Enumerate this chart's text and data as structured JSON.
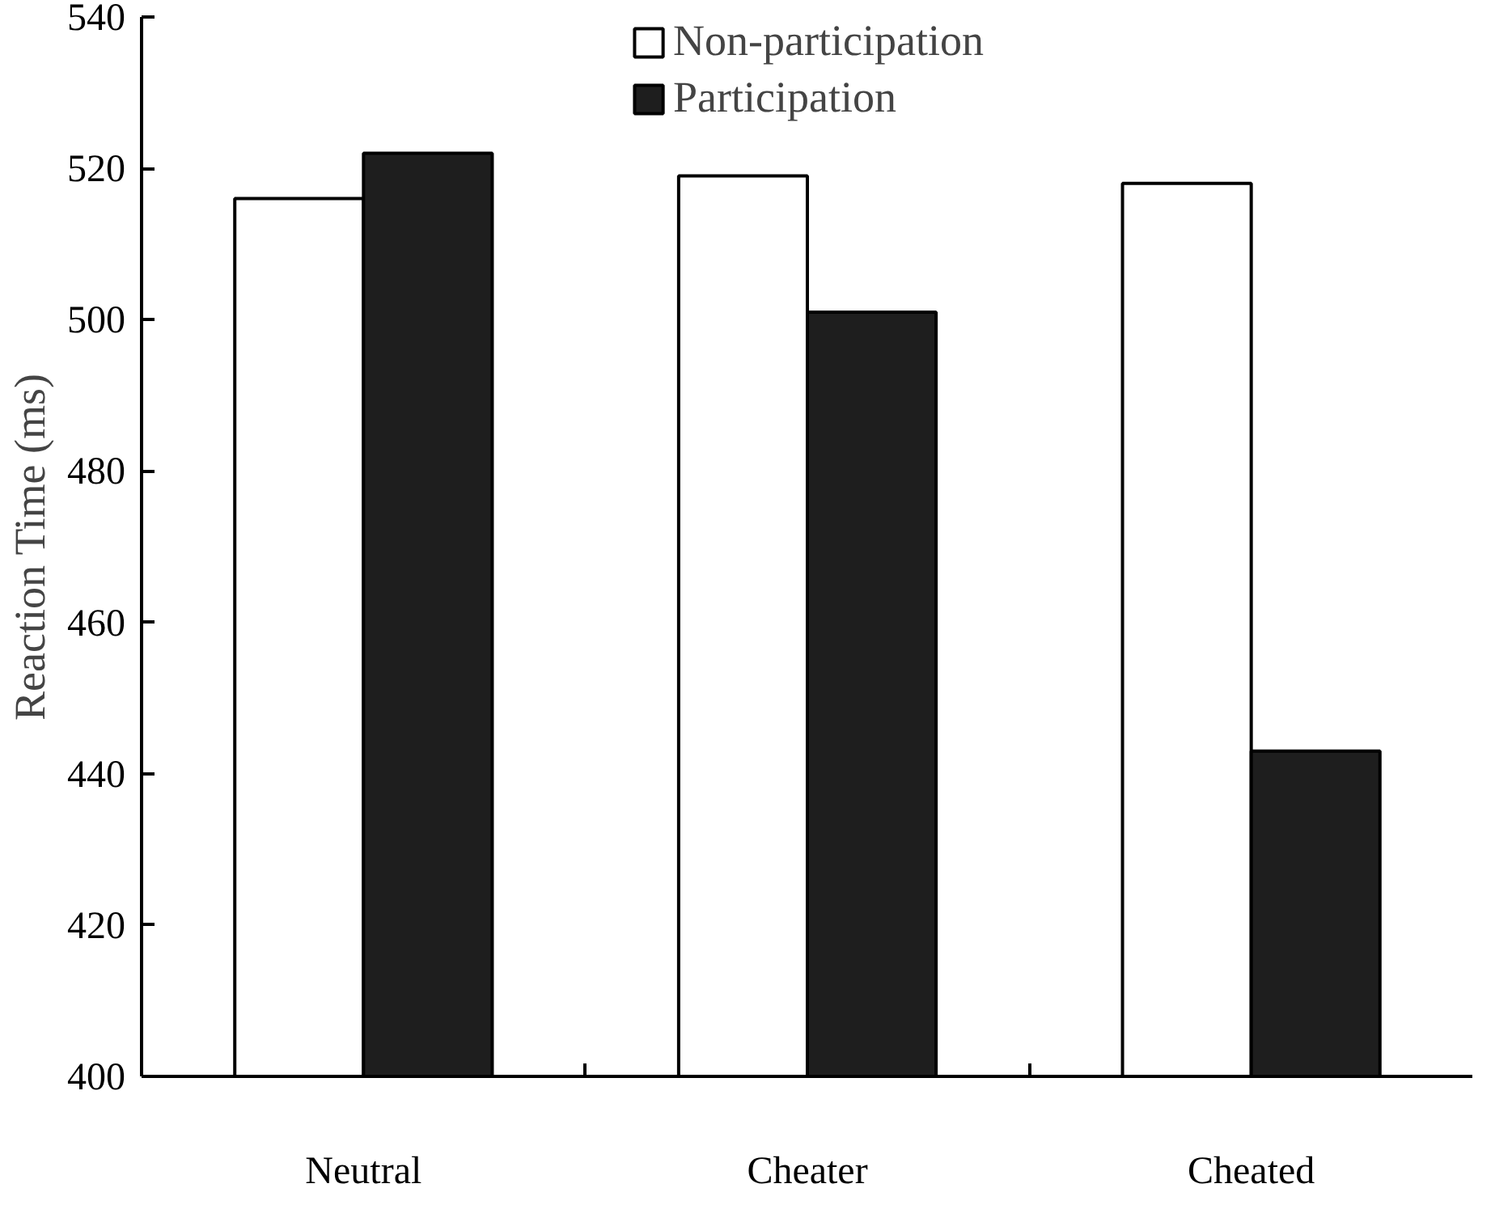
{
  "chart_data": {
    "type": "bar",
    "ylabel": "Reaction Time (ms)",
    "categories": [
      "Neutral",
      "Cheater",
      "Cheated"
    ],
    "series": [
      {
        "name": "Non-participation",
        "color": "#ffffff",
        "values": [
          516,
          519,
          518
        ]
      },
      {
        "name": "Participation",
        "color": "#1e1e1e",
        "values": [
          522,
          501,
          443
        ]
      }
    ],
    "ylim": [
      400,
      540
    ],
    "yticks": [
      400,
      420,
      440,
      460,
      480,
      500,
      520,
      540
    ],
    "legend": "top"
  }
}
